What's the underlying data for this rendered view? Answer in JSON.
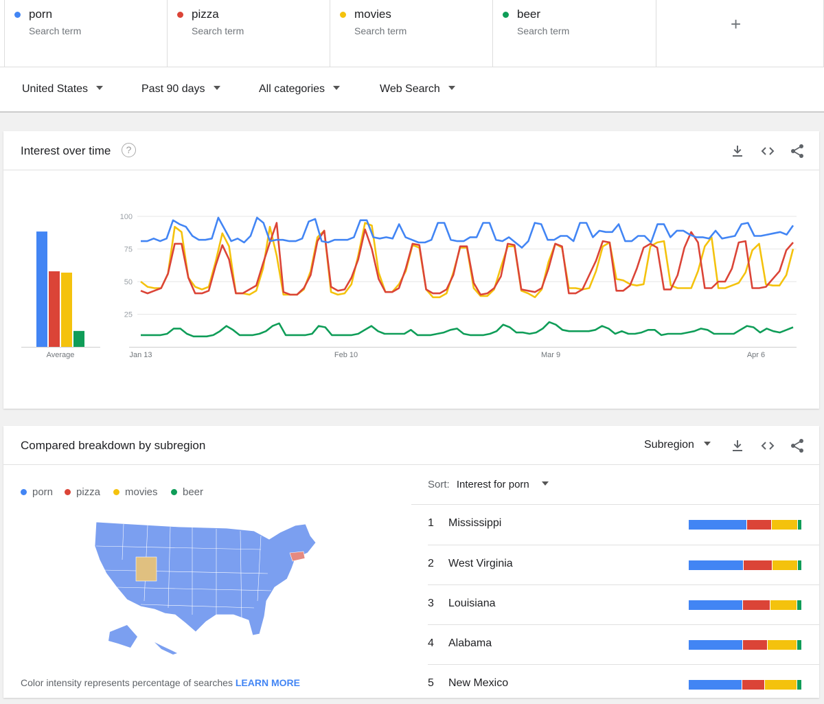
{
  "colors": {
    "porn": "#4285f4",
    "pizza": "#db4437",
    "movies": "#f4c20d",
    "beer": "#0f9d58"
  },
  "terms": [
    {
      "name": "porn",
      "sub": "Search term",
      "color": "#4285f4"
    },
    {
      "name": "pizza",
      "sub": "Search term",
      "color": "#db4437"
    },
    {
      "name": "movies",
      "sub": "Search term",
      "color": "#f4c20d"
    },
    {
      "name": "beer",
      "sub": "Search term",
      "color": "#0f9d58"
    }
  ],
  "add_icon": "+",
  "filters": {
    "region": "United States",
    "period": "Past 90 days",
    "category": "All categories",
    "type": "Web Search"
  },
  "interest": {
    "title": "Interest over time",
    "help": "?",
    "icons": [
      "download-icon",
      "embed-icon",
      "share-icon"
    ],
    "average_label": "Average",
    "chart_data": {
      "type": "line",
      "y_ticks": [
        "100",
        "75",
        "50",
        "25"
      ],
      "ylim": [
        0,
        100
      ],
      "x_labels": [
        "Jan 13",
        "Feb 10",
        "Mar 9",
        "Apr 6"
      ],
      "averages": {
        "porn": 87,
        "pizza": 57,
        "movies": 56,
        "beer": 12
      },
      "series": [
        {
          "name": "porn",
          "values": [
            81,
            81,
            83,
            81,
            83,
            97,
            94,
            92,
            85,
            82,
            82,
            83,
            99,
            90,
            81,
            83,
            80,
            85,
            99,
            95,
            81,
            82,
            82,
            81,
            81,
            83,
            96,
            98,
            81,
            80,
            82,
            82,
            82,
            84,
            97,
            97,
            84,
            83,
            84,
            83,
            94,
            84,
            82,
            80,
            80,
            82,
            95,
            95,
            82,
            81,
            81,
            84,
            84,
            95,
            95,
            82,
            81,
            84,
            80,
            76,
            81,
            95,
            94,
            82,
            82,
            85,
            85,
            81,
            95,
            95,
            84,
            89,
            88,
            88,
            94,
            81,
            81,
            85,
            85,
            80,
            94,
            94,
            84,
            89,
            89,
            86,
            84,
            84,
            83,
            89,
            83,
            84,
            85,
            94,
            95,
            85,
            85,
            86,
            87,
            88,
            86,
            93
          ]
        },
        {
          "name": "pizza",
          "values": [
            43,
            41,
            43,
            45,
            56,
            79,
            79,
            53,
            41,
            41,
            43,
            62,
            78,
            67,
            41,
            41,
            44,
            47,
            64,
            80,
            95,
            42,
            40,
            40,
            45,
            55,
            81,
            89,
            46,
            43,
            44,
            53,
            67,
            90,
            75,
            52,
            42,
            42,
            45,
            60,
            79,
            78,
            44,
            41,
            41,
            44,
            55,
            77,
            77,
            49,
            40,
            41,
            45,
            54,
            79,
            78,
            44,
            43,
            42,
            45,
            60,
            79,
            77,
            41,
            41,
            44,
            55,
            66,
            81,
            80,
            43,
            43,
            47,
            60,
            76,
            79,
            76,
            44,
            44,
            55,
            76,
            88,
            80,
            45,
            45,
            50,
            50,
            60,
            80,
            81,
            45,
            45,
            46,
            52,
            58,
            74,
            80
          ]
        },
        {
          "name": "movies",
          "values": [
            50,
            46,
            45,
            45,
            56,
            92,
            88,
            53,
            46,
            44,
            46,
            65,
            87,
            77,
            41,
            41,
            40,
            43,
            60,
            92,
            70,
            40,
            40,
            40,
            44,
            58,
            84,
            89,
            42,
            40,
            41,
            48,
            70,
            95,
            93,
            57,
            42,
            42,
            48,
            58,
            78,
            76,
            44,
            38,
            38,
            41,
            57,
            76,
            76,
            45,
            39,
            39,
            44,
            61,
            77,
            77,
            43,
            41,
            38,
            44,
            65,
            79,
            76,
            45,
            45,
            44,
            45,
            58,
            77,
            80,
            52,
            51,
            48,
            47,
            48,
            77,
            80,
            81,
            47,
            45,
            45,
            45,
            58,
            77,
            84,
            45,
            45,
            47,
            49,
            57,
            74,
            79,
            48,
            47,
            47,
            55,
            75
          ]
        },
        {
          "name": "beer",
          "values": [
            9,
            9,
            9,
            9,
            10,
            14,
            14,
            10,
            8,
            8,
            8,
            9,
            12,
            16,
            13,
            9,
            9,
            9,
            10,
            12,
            16,
            18,
            9,
            9,
            9,
            9,
            10,
            16,
            15,
            9,
            9,
            9,
            9,
            10,
            13,
            16,
            12,
            10,
            10,
            10,
            10,
            13,
            9,
            9,
            9,
            10,
            11,
            13,
            14,
            10,
            9,
            9,
            9,
            10,
            12,
            17,
            15,
            11,
            11,
            10,
            11,
            14,
            19,
            17,
            13,
            12,
            12,
            12,
            12,
            13,
            16,
            14,
            10,
            12,
            10,
            10,
            11,
            13,
            13,
            9,
            10,
            10,
            10,
            11,
            12,
            14,
            13,
            10,
            10,
            10,
            10,
            13,
            16,
            15,
            11,
            14,
            12,
            11,
            13,
            15
          ]
        }
      ]
    }
  },
  "breakdown": {
    "title": "Compared breakdown by subregion",
    "dropdown": "Subregion",
    "legend": [
      "porn",
      "pizza",
      "movies",
      "beer"
    ],
    "footer_text": "Color intensity represents percentage of searches ",
    "learn_more": "LEARN MORE",
    "sort_label": "Sort:",
    "sort_value": "Interest for porn",
    "rows": [
      {
        "rank": "1",
        "name": "Mississippi",
        "shares": [
          0.54,
          0.22,
          0.24,
          0.03
        ]
      },
      {
        "rank": "2",
        "name": "West Virginia",
        "shares": [
          0.5,
          0.26,
          0.23,
          0.03
        ]
      },
      {
        "rank": "3",
        "name": "Louisiana",
        "shares": [
          0.5,
          0.25,
          0.24,
          0.04
        ]
      },
      {
        "rank": "4",
        "name": "Alabama",
        "shares": [
          0.5,
          0.22,
          0.27,
          0.04
        ]
      },
      {
        "rank": "5",
        "name": "New Mexico",
        "shares": [
          0.49,
          0.21,
          0.29,
          0.04
        ]
      }
    ]
  }
}
